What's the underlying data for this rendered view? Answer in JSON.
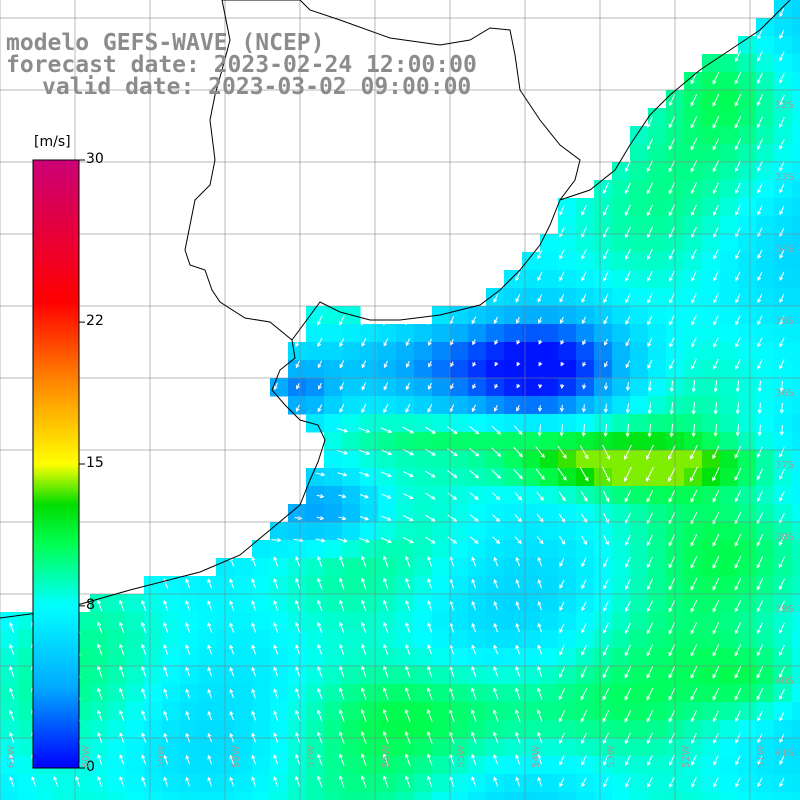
{
  "title": {
    "model": "modelo GEFS-WAVE (NCEP)",
    "forecast": "forecast date: 2023-02-24 12:00:00",
    "valid": "valid date: 2023-03-02 09:00:00"
  },
  "colorbar": {
    "unit": "[m/s]",
    "min": 0,
    "max": 30,
    "ticks": [
      "30",
      "22",
      "15",
      "8",
      "0"
    ],
    "tick_values": [
      30,
      22,
      15,
      8,
      0
    ],
    "stops": [
      "#0000ff",
      "#00aaff",
      "#00ffff",
      "#00ff55",
      "#00dd00",
      "#ffff00",
      "#ff8800",
      "#ff0000",
      "#cc0077"
    ]
  },
  "grid": {
    "lat_labels": [
      "32S",
      "33S",
      "34S",
      "35S",
      "36S",
      "37S",
      "38S",
      "39S",
      "40S",
      "41S"
    ],
    "lon_labels": [
      "61W",
      "60W",
      "59W",
      "58W",
      "57W",
      "56W",
      "55W",
      "54W",
      "53W",
      "52W",
      "51W"
    ]
  },
  "colors": {
    "land": "#ffffff",
    "coast": "#000000",
    "grid": "#808080",
    "title": "#8c8c8c",
    "arrow": "#ffffff"
  }
}
